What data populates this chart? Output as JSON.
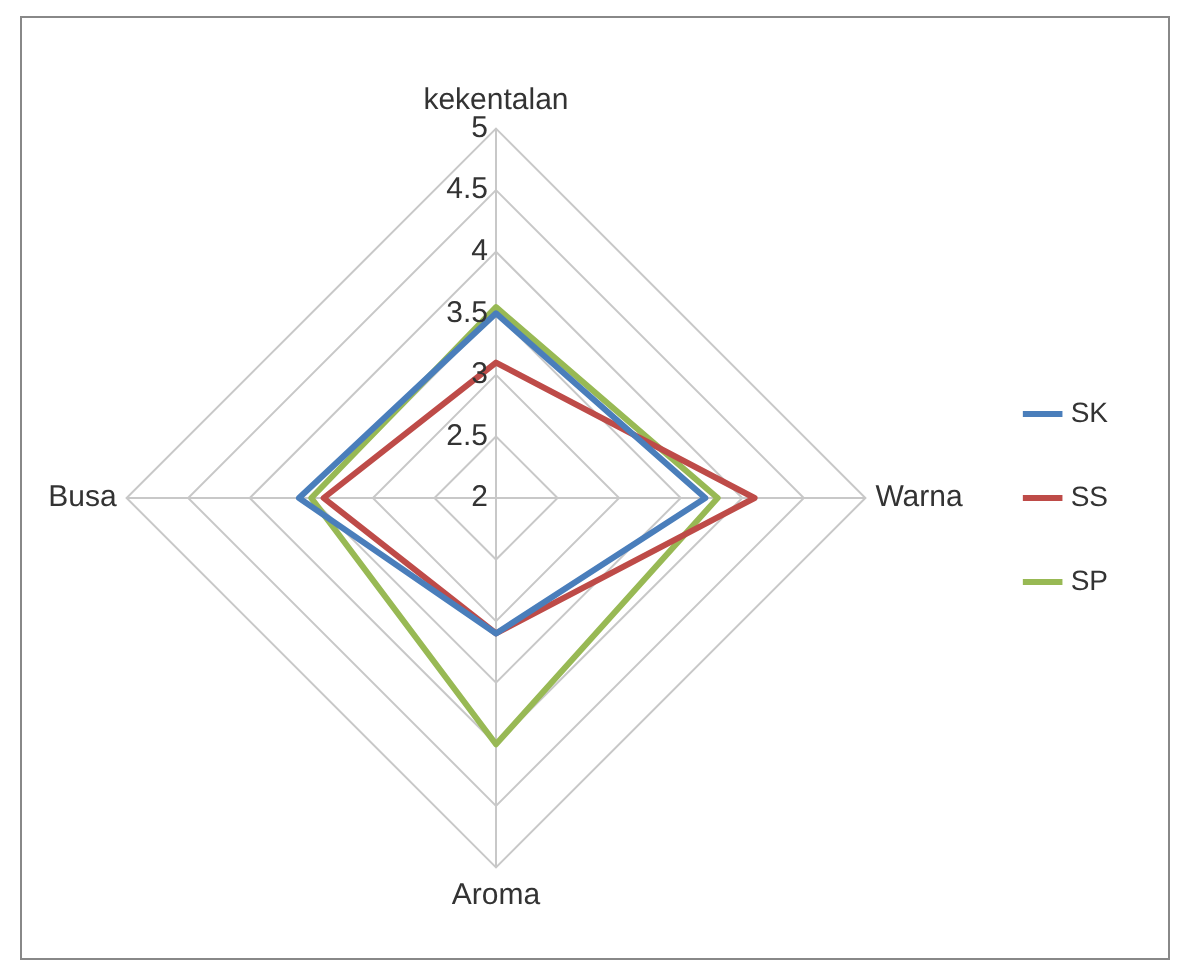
{
  "chart_data": {
    "type": "radar",
    "categories": [
      "kekentalan",
      "Warna",
      "Aroma",
      "Busa"
    ],
    "series": [
      {
        "name": "SK",
        "color": "#4a7ebb",
        "values": [
          3.5,
          3.7,
          3.1,
          3.6
        ]
      },
      {
        "name": "SS",
        "color": "#be4b48",
        "values": [
          3.1,
          4.1,
          3.1,
          3.4
        ]
      },
      {
        "name": "SP",
        "color": "#98b954",
        "values": [
          3.55,
          3.8,
          4.0,
          3.5
        ]
      }
    ],
    "ylim": [
      2,
      5
    ],
    "yticks": [
      2,
      2.5,
      3,
      3.5,
      4,
      4.5,
      5
    ],
    "legend": "right",
    "marker": "none"
  }
}
